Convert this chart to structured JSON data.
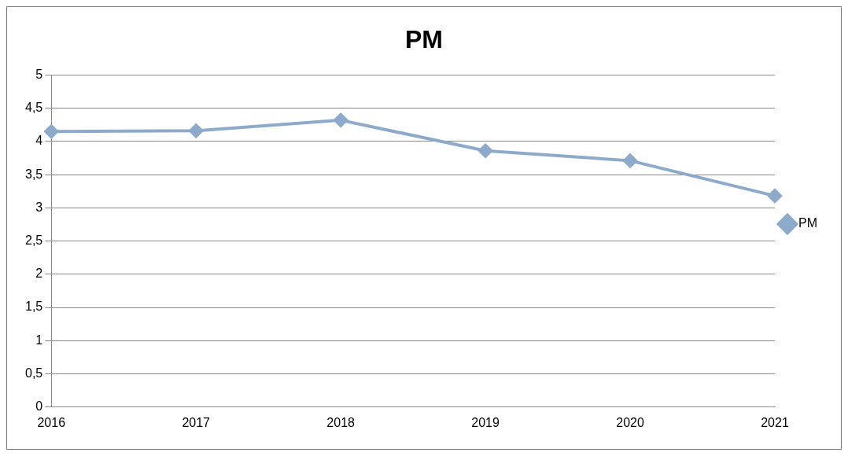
{
  "chart_data": {
    "type": "line",
    "title": "PM",
    "categories": [
      "2016",
      "2017",
      "2018",
      "2019",
      "2020",
      "2021"
    ],
    "series": [
      {
        "name": "PM",
        "color": "#8eaacb",
        "values": [
          4.15,
          4.16,
          4.32,
          3.86,
          3.71,
          3.18
        ]
      }
    ],
    "ylim": [
      0,
      5
    ],
    "yticks": [
      0,
      {
        "value": 0.5,
        "label": "0,5"
      },
      1,
      {
        "value": 1.5,
        "label": "1,5"
      },
      2,
      {
        "value": 2.5,
        "label": "2,5"
      },
      3,
      {
        "value": 3.5,
        "label": "3,5"
      },
      4,
      {
        "value": 4.5,
        "label": "4,5"
      },
      5
    ],
    "grid": "y",
    "legend": "right",
    "marker": "diamond",
    "line_style": "solid"
  }
}
